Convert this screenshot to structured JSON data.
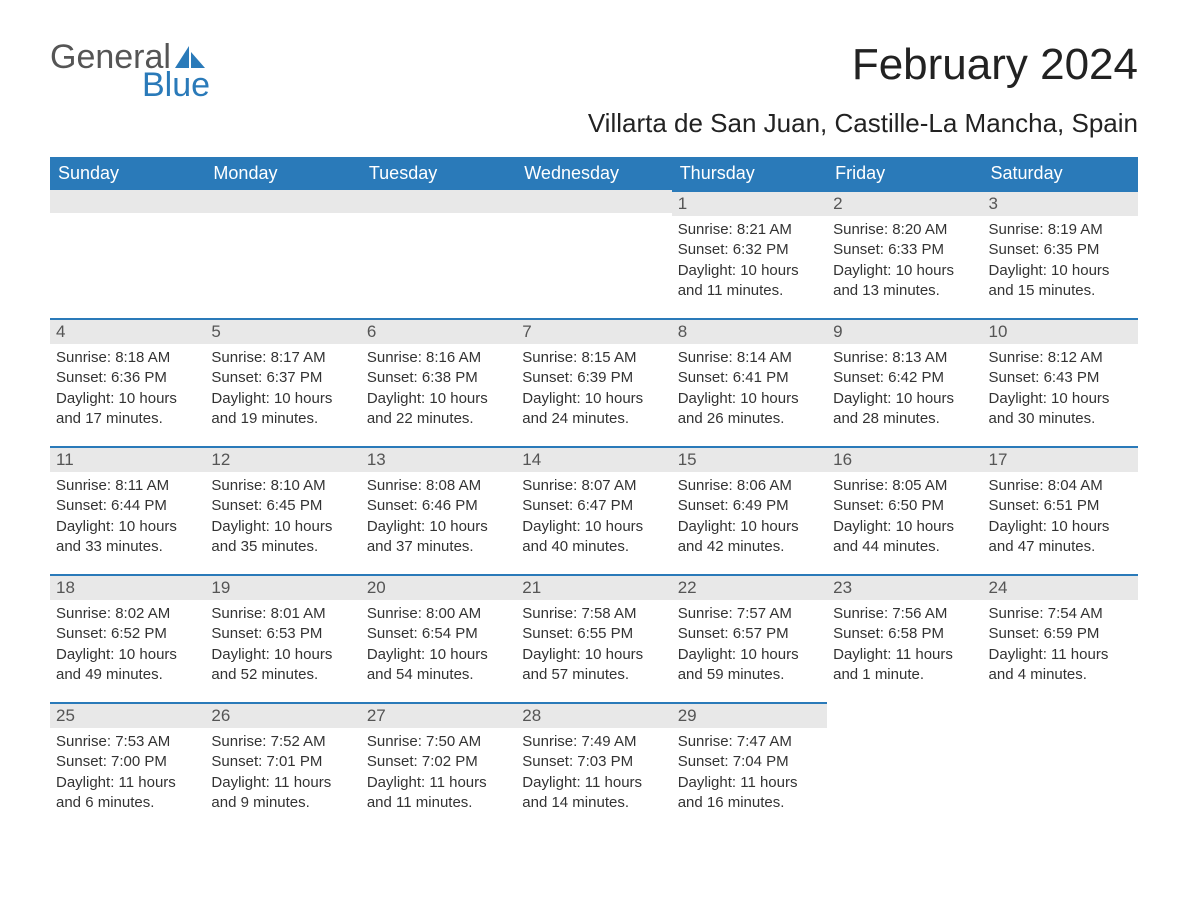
{
  "logo": {
    "word1": "General",
    "word2": "Blue"
  },
  "title": "February 2024",
  "subtitle": "Villarta de San Juan, Castille-La Mancha, Spain",
  "colors": {
    "header_bg": "#2a7ab9",
    "header_text": "#ffffff",
    "daybar_bg": "#e8e8e8",
    "daybar_border": "#2a7ab9",
    "body_text": "#333333",
    "page_bg": "#ffffff",
    "logo_gray": "#555555",
    "logo_blue": "#2a7ab9"
  },
  "fonts": {
    "title_size_pt": 33,
    "subtitle_size_pt": 20,
    "weekday_size_pt": 14,
    "daynum_size_pt": 13,
    "body_size_pt": 11
  },
  "weekdays": [
    "Sunday",
    "Monday",
    "Tuesday",
    "Wednesday",
    "Thursday",
    "Friday",
    "Saturday"
  ],
  "weeks": [
    [
      null,
      null,
      null,
      null,
      {
        "d": "1",
        "sr": "Sunrise: 8:21 AM",
        "ss": "Sunset: 6:32 PM",
        "dl1": "Daylight: 10 hours",
        "dl2": "and 11 minutes."
      },
      {
        "d": "2",
        "sr": "Sunrise: 8:20 AM",
        "ss": "Sunset: 6:33 PM",
        "dl1": "Daylight: 10 hours",
        "dl2": "and 13 minutes."
      },
      {
        "d": "3",
        "sr": "Sunrise: 8:19 AM",
        "ss": "Sunset: 6:35 PM",
        "dl1": "Daylight: 10 hours",
        "dl2": "and 15 minutes."
      }
    ],
    [
      {
        "d": "4",
        "sr": "Sunrise: 8:18 AM",
        "ss": "Sunset: 6:36 PM",
        "dl1": "Daylight: 10 hours",
        "dl2": "and 17 minutes."
      },
      {
        "d": "5",
        "sr": "Sunrise: 8:17 AM",
        "ss": "Sunset: 6:37 PM",
        "dl1": "Daylight: 10 hours",
        "dl2": "and 19 minutes."
      },
      {
        "d": "6",
        "sr": "Sunrise: 8:16 AM",
        "ss": "Sunset: 6:38 PM",
        "dl1": "Daylight: 10 hours",
        "dl2": "and 22 minutes."
      },
      {
        "d": "7",
        "sr": "Sunrise: 8:15 AM",
        "ss": "Sunset: 6:39 PM",
        "dl1": "Daylight: 10 hours",
        "dl2": "and 24 minutes."
      },
      {
        "d": "8",
        "sr": "Sunrise: 8:14 AM",
        "ss": "Sunset: 6:41 PM",
        "dl1": "Daylight: 10 hours",
        "dl2": "and 26 minutes."
      },
      {
        "d": "9",
        "sr": "Sunrise: 8:13 AM",
        "ss": "Sunset: 6:42 PM",
        "dl1": "Daylight: 10 hours",
        "dl2": "and 28 minutes."
      },
      {
        "d": "10",
        "sr": "Sunrise: 8:12 AM",
        "ss": "Sunset: 6:43 PM",
        "dl1": "Daylight: 10 hours",
        "dl2": "and 30 minutes."
      }
    ],
    [
      {
        "d": "11",
        "sr": "Sunrise: 8:11 AM",
        "ss": "Sunset: 6:44 PM",
        "dl1": "Daylight: 10 hours",
        "dl2": "and 33 minutes."
      },
      {
        "d": "12",
        "sr": "Sunrise: 8:10 AM",
        "ss": "Sunset: 6:45 PM",
        "dl1": "Daylight: 10 hours",
        "dl2": "and 35 minutes."
      },
      {
        "d": "13",
        "sr": "Sunrise: 8:08 AM",
        "ss": "Sunset: 6:46 PM",
        "dl1": "Daylight: 10 hours",
        "dl2": "and 37 minutes."
      },
      {
        "d": "14",
        "sr": "Sunrise: 8:07 AM",
        "ss": "Sunset: 6:47 PM",
        "dl1": "Daylight: 10 hours",
        "dl2": "and 40 minutes."
      },
      {
        "d": "15",
        "sr": "Sunrise: 8:06 AM",
        "ss": "Sunset: 6:49 PM",
        "dl1": "Daylight: 10 hours",
        "dl2": "and 42 minutes."
      },
      {
        "d": "16",
        "sr": "Sunrise: 8:05 AM",
        "ss": "Sunset: 6:50 PM",
        "dl1": "Daylight: 10 hours",
        "dl2": "and 44 minutes."
      },
      {
        "d": "17",
        "sr": "Sunrise: 8:04 AM",
        "ss": "Sunset: 6:51 PM",
        "dl1": "Daylight: 10 hours",
        "dl2": "and 47 minutes."
      }
    ],
    [
      {
        "d": "18",
        "sr": "Sunrise: 8:02 AM",
        "ss": "Sunset: 6:52 PM",
        "dl1": "Daylight: 10 hours",
        "dl2": "and 49 minutes."
      },
      {
        "d": "19",
        "sr": "Sunrise: 8:01 AM",
        "ss": "Sunset: 6:53 PM",
        "dl1": "Daylight: 10 hours",
        "dl2": "and 52 minutes."
      },
      {
        "d": "20",
        "sr": "Sunrise: 8:00 AM",
        "ss": "Sunset: 6:54 PM",
        "dl1": "Daylight: 10 hours",
        "dl2": "and 54 minutes."
      },
      {
        "d": "21",
        "sr": "Sunrise: 7:58 AM",
        "ss": "Sunset: 6:55 PM",
        "dl1": "Daylight: 10 hours",
        "dl2": "and 57 minutes."
      },
      {
        "d": "22",
        "sr": "Sunrise: 7:57 AM",
        "ss": "Sunset: 6:57 PM",
        "dl1": "Daylight: 10 hours",
        "dl2": "and 59 minutes."
      },
      {
        "d": "23",
        "sr": "Sunrise: 7:56 AM",
        "ss": "Sunset: 6:58 PM",
        "dl1": "Daylight: 11 hours",
        "dl2": "and 1 minute."
      },
      {
        "d": "24",
        "sr": "Sunrise: 7:54 AM",
        "ss": "Sunset: 6:59 PM",
        "dl1": "Daylight: 11 hours",
        "dl2": "and 4 minutes."
      }
    ],
    [
      {
        "d": "25",
        "sr": "Sunrise: 7:53 AM",
        "ss": "Sunset: 7:00 PM",
        "dl1": "Daylight: 11 hours",
        "dl2": "and 6 minutes."
      },
      {
        "d": "26",
        "sr": "Sunrise: 7:52 AM",
        "ss": "Sunset: 7:01 PM",
        "dl1": "Daylight: 11 hours",
        "dl2": "and 9 minutes."
      },
      {
        "d": "27",
        "sr": "Sunrise: 7:50 AM",
        "ss": "Sunset: 7:02 PM",
        "dl1": "Daylight: 11 hours",
        "dl2": "and 11 minutes."
      },
      {
        "d": "28",
        "sr": "Sunrise: 7:49 AM",
        "ss": "Sunset: 7:03 PM",
        "dl1": "Daylight: 11 hours",
        "dl2": "and 14 minutes."
      },
      {
        "d": "29",
        "sr": "Sunrise: 7:47 AM",
        "ss": "Sunset: 7:04 PM",
        "dl1": "Daylight: 11 hours",
        "dl2": "and 16 minutes."
      },
      null,
      null
    ]
  ]
}
